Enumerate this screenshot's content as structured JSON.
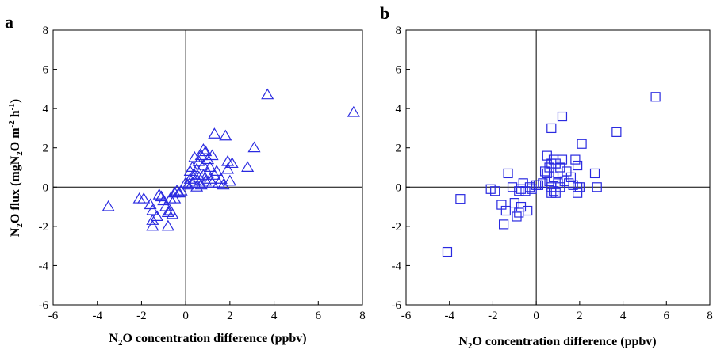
{
  "figure": {
    "panels": [
      "a",
      "b"
    ],
    "y_axis_title": {
      "prefix": "N",
      "sub1": "2",
      "mid": "O flux (mgN",
      "sub2": "2",
      "mid2": "O m",
      "sup1": "-2",
      "mid3": " h",
      "sup2": "-1",
      "suffix": ")"
    },
    "x_axis_title": {
      "prefix": "N",
      "sub": "2",
      "suffix": "O concentration difference (ppbv)"
    },
    "marker_color": "#2a2ae0"
  },
  "chart_data": [
    {
      "type": "scatter",
      "panel": "a",
      "marker": "triangle",
      "xlim": [
        -6,
        8
      ],
      "ylim": [
        -6,
        8
      ],
      "xticks": [
        -6,
        -4,
        -2,
        0,
        2,
        4,
        6,
        8
      ],
      "yticks": [
        -6,
        -4,
        -2,
        0,
        2,
        4,
        6,
        8
      ],
      "points": [
        [
          -3.5,
          -1.0
        ],
        [
          -2.1,
          -0.6
        ],
        [
          -1.9,
          -0.6
        ],
        [
          -1.6,
          -0.9
        ],
        [
          -1.5,
          -1.2
        ],
        [
          -1.5,
          -1.7
        ],
        [
          -1.5,
          -2.0
        ],
        [
          -1.3,
          -1.5
        ],
        [
          -1.2,
          -0.4
        ],
        [
          -1.1,
          -0.5
        ],
        [
          -1.0,
          -0.7
        ],
        [
          -0.9,
          -1.0
        ],
        [
          -0.8,
          -2.0
        ],
        [
          -0.8,
          -1.3
        ],
        [
          -0.7,
          -1.2
        ],
        [
          -0.7,
          -0.6
        ],
        [
          -0.6,
          -1.4
        ],
        [
          -0.5,
          -0.6
        ],
        [
          -0.5,
          -0.3
        ],
        [
          -0.4,
          -0.2
        ],
        [
          -0.3,
          -0.3
        ],
        [
          -0.2,
          -0.2
        ],
        [
          0.0,
          0.2
        ],
        [
          0.1,
          0.1
        ],
        [
          0.2,
          0.4
        ],
        [
          0.2,
          0.8
        ],
        [
          0.3,
          0.2
        ],
        [
          0.3,
          1.0
        ],
        [
          0.4,
          0.3
        ],
        [
          0.4,
          1.5
        ],
        [
          0.4,
          0.6
        ],
        [
          0.5,
          0.0
        ],
        [
          0.5,
          0.9
        ],
        [
          0.6,
          1.3
        ],
        [
          0.6,
          0.5
        ],
        [
          0.6,
          0.2
        ],
        [
          0.7,
          1.6
        ],
        [
          0.7,
          0.1
        ],
        [
          0.8,
          1.9
        ],
        [
          0.8,
          1.1
        ],
        [
          0.8,
          0.6
        ],
        [
          0.9,
          1.8
        ],
        [
          0.9,
          0.3
        ],
        [
          1.0,
          1.4
        ],
        [
          1.0,
          0.7
        ],
        [
          1.1,
          0.4
        ],
        [
          1.1,
          1.0
        ],
        [
          1.2,
          1.6
        ],
        [
          1.2,
          0.2
        ],
        [
          1.3,
          2.7
        ],
        [
          1.3,
          0.6
        ],
        [
          1.4,
          0.8
        ],
        [
          1.5,
          0.2
        ],
        [
          1.6,
          0.4
        ],
        [
          1.7,
          0.1
        ],
        [
          1.8,
          2.6
        ],
        [
          1.9,
          1.3
        ],
        [
          1.9,
          0.9
        ],
        [
          2.0,
          0.3
        ],
        [
          2.1,
          1.2
        ],
        [
          2.8,
          1.0
        ],
        [
          3.1,
          2.0
        ],
        [
          3.7,
          4.7
        ],
        [
          7.6,
          3.8
        ]
      ]
    },
    {
      "type": "scatter",
      "panel": "b",
      "marker": "square",
      "xlim": [
        -6,
        8
      ],
      "ylim": [
        -6,
        8
      ],
      "xticks": [
        -6,
        -4,
        -2,
        0,
        2,
        4,
        6,
        8
      ],
      "yticks": [
        -6,
        -4,
        -2,
        0,
        2,
        4,
        6,
        8
      ],
      "points": [
        [
          -4.1,
          -3.3
        ],
        [
          -3.5,
          -0.6
        ],
        [
          -2.1,
          -0.1
        ],
        [
          -1.9,
          -0.2
        ],
        [
          -1.6,
          -0.9
        ],
        [
          -1.5,
          -1.9
        ],
        [
          -1.4,
          -1.2
        ],
        [
          -1.3,
          0.7
        ],
        [
          -1.1,
          0.0
        ],
        [
          -1.0,
          -0.8
        ],
        [
          -0.9,
          -1.5
        ],
        [
          -0.8,
          -1.3
        ],
        [
          -0.8,
          -0.2
        ],
        [
          -0.7,
          -1.0
        ],
        [
          -0.7,
          -0.1
        ],
        [
          -0.6,
          0.2
        ],
        [
          -0.5,
          -0.2
        ],
        [
          -0.4,
          -1.2
        ],
        [
          -0.3,
          0.0
        ],
        [
          -0.2,
          -0.1
        ],
        [
          0.0,
          0.1
        ],
        [
          0.1,
          0.1
        ],
        [
          0.3,
          0.2
        ],
        [
          0.4,
          0.8
        ],
        [
          0.5,
          1.6
        ],
        [
          0.5,
          0.7
        ],
        [
          0.6,
          1.0
        ],
        [
          0.6,
          0.3
        ],
        [
          0.7,
          3.0
        ],
        [
          0.7,
          1.2
        ],
        [
          0.7,
          0.0
        ],
        [
          0.7,
          -0.3
        ],
        [
          0.8,
          1.4
        ],
        [
          0.8,
          0.5
        ],
        [
          0.8,
          -0.2
        ],
        [
          0.9,
          1.2
        ],
        [
          0.9,
          -0.3
        ],
        [
          1.0,
          0.2
        ],
        [
          1.0,
          0.7
        ],
        [
          1.1,
          1.0
        ],
        [
          1.1,
          0.0
        ],
        [
          1.2,
          3.6
        ],
        [
          1.2,
          1.4
        ],
        [
          1.3,
          0.3
        ],
        [
          1.4,
          0.8
        ],
        [
          1.5,
          0.2
        ],
        [
          1.6,
          0.5
        ],
        [
          1.7,
          0.1
        ],
        [
          1.8,
          1.4
        ],
        [
          1.9,
          1.1
        ],
        [
          1.9,
          0.0
        ],
        [
          1.9,
          -0.3
        ],
        [
          2.0,
          0.0
        ],
        [
          2.1,
          2.2
        ],
        [
          2.7,
          0.7
        ],
        [
          2.8,
          0.0
        ],
        [
          3.7,
          2.8
        ],
        [
          5.5,
          4.6
        ]
      ]
    }
  ]
}
